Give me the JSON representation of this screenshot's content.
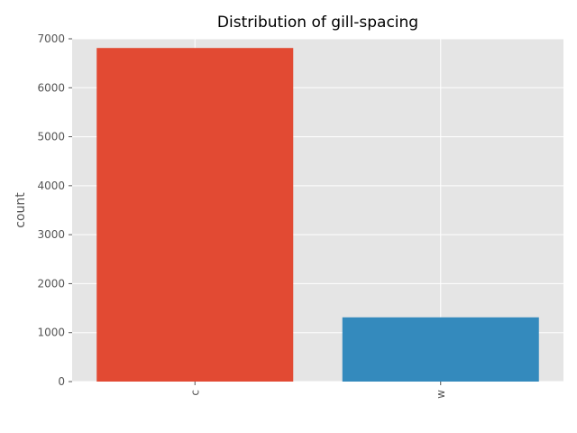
{
  "chart_data": {
    "type": "bar",
    "title": "Distribution of gill-spacing",
    "xlabel": "",
    "ylabel": "count",
    "categories": [
      "c",
      "w"
    ],
    "values": [
      6812,
      1312
    ],
    "colors": [
      "#E24A33",
      "#348ABD"
    ],
    "ylim": [
      0,
      7000
    ],
    "yticks": [
      0,
      1000,
      2000,
      3000,
      4000,
      5000,
      6000,
      7000
    ],
    "ytick_labels": [
      "0",
      "1000",
      "2000",
      "3000",
      "4000",
      "5000",
      "6000",
      "7000"
    ],
    "grid": true,
    "background": "#E5E5E5",
    "style": "ggplot"
  }
}
